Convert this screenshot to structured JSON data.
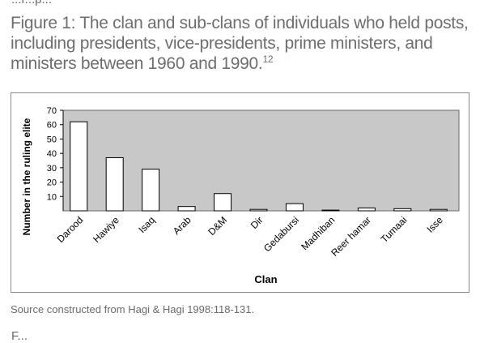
{
  "top_fragment": "...r...p...",
  "figure": {
    "title": "Figure 1: The clan and sub-clans of individuals who held posts, including presidents, vice-presidents, prime ministers, and ministers between 1960 and 1990.",
    "footnote": "12",
    "source": "Source constructed from Hagi & Hagi 1998:118-131."
  },
  "bottom_fragment": "F...",
  "chart_data": {
    "type": "bar",
    "title": "",
    "xlabel": "Clan",
    "ylabel": "Number in the ruling elite",
    "ylim": [
      0,
      70
    ],
    "yticks": [
      10,
      20,
      30,
      40,
      50,
      60,
      70
    ],
    "categories": [
      "Darood",
      "Hawiye",
      "Isaq",
      "Arab",
      "D&M",
      "Dir",
      "Gedabursi",
      "Madhiban",
      "Reer hamar",
      "Tumaai",
      "Isse"
    ],
    "values": [
      62,
      37,
      29,
      3,
      12,
      1,
      5,
      0.5,
      2,
      1.5,
      1
    ],
    "grid": false,
    "legend": "none",
    "colors": {
      "plot_bg": "#c8c8c8",
      "bar_fill": "#ffffff",
      "bar_stroke": "#000000",
      "axis": "#000000"
    }
  }
}
